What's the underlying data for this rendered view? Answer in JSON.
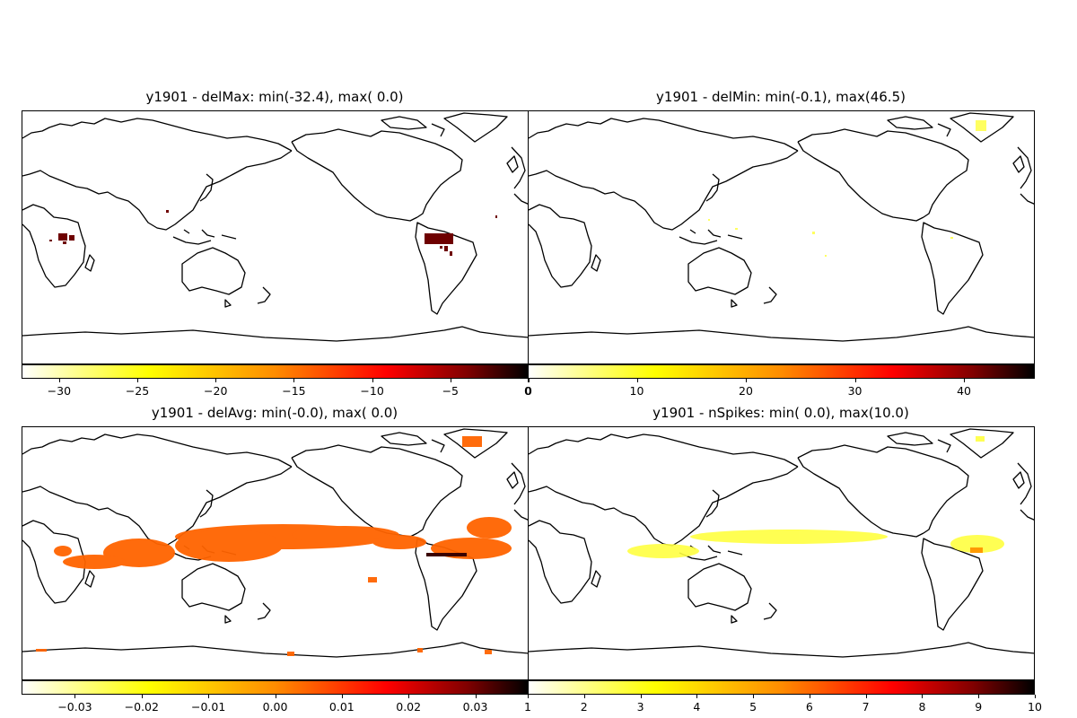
{
  "figure": {
    "panels": [
      {
        "id": "delMax",
        "title": "y1901 - delMax: min(-32.4), max( 0.0)",
        "colorbar": {
          "ticks": [
            "−30",
            "−25",
            "−20",
            "−15",
            "−10",
            "−5",
            "0"
          ],
          "tick_values": [
            -30,
            -25,
            -20,
            -15,
            -10,
            -5,
            0
          ],
          "range": [
            -32.4,
            0.0
          ]
        }
      },
      {
        "id": "delMin",
        "title": "y1901 - delMin: min(-0.1), max(46.5)",
        "colorbar": {
          "ticks": [
            "0",
            "10",
            "20",
            "30",
            "40"
          ],
          "tick_values": [
            0,
            10,
            20,
            30,
            40
          ],
          "range": [
            0,
            46.5
          ]
        }
      },
      {
        "id": "delAvg",
        "title": "y1901 - delAvg: min(-0.0), max( 0.0)",
        "colorbar": {
          "ticks": [
            "−0.03",
            "−0.02",
            "−0.01",
            "0.00",
            "0.01",
            "0.02",
            "0.03"
          ],
          "tick_values": [
            -0.03,
            -0.02,
            -0.01,
            0.0,
            0.01,
            0.02,
            0.03
          ],
          "range": [
            -0.038,
            0.038
          ]
        }
      },
      {
        "id": "nSpikes",
        "title": "y1901 - nSpikes: min( 0.0), max(10.0)",
        "colorbar": {
          "ticks": [
            "1",
            "2",
            "3",
            "4",
            "5",
            "6",
            "7",
            "8",
            "9",
            "10"
          ],
          "tick_values": [
            1,
            2,
            3,
            4,
            5,
            6,
            7,
            8,
            9,
            10
          ],
          "range": [
            1,
            10
          ]
        }
      }
    ],
    "colormap": "hot_r",
    "colors": {
      "coast": "#000000",
      "background": "#ffffff",
      "orange": "#ff6400",
      "darkred": "#6e0000",
      "yellow": "#ffff60"
    }
  }
}
